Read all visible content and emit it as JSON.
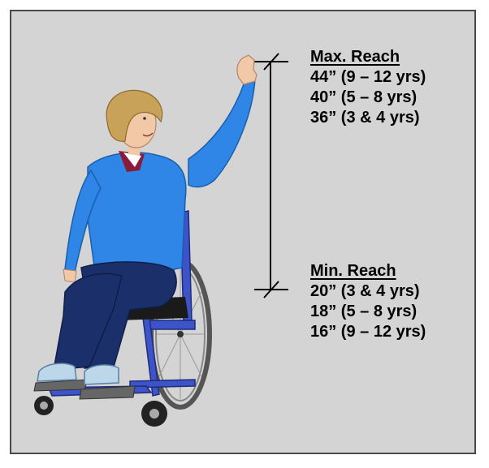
{
  "max_reach": {
    "header": "Max. Reach",
    "rows": [
      "44” (9 – 12 yrs)",
      "40” (5 – 8 yrs)",
      "36” (3 & 4 yrs)"
    ]
  },
  "min_reach": {
    "header": "Min. Reach",
    "rows": [
      "20” (3 & 4 yrs)",
      "18” (5 – 8 yrs)",
      "16” (9 – 12 yrs)"
    ]
  },
  "colors": {
    "background": "#d4d4d4",
    "border": "#4a4a4a",
    "sweater": "#2f86e6",
    "pants": "#1b2f6b",
    "wheelchair_frame": "#3c54c8",
    "hair": "#c9a25a",
    "skin": "#f2c9a6",
    "shoes": "#bcd6ea"
  }
}
